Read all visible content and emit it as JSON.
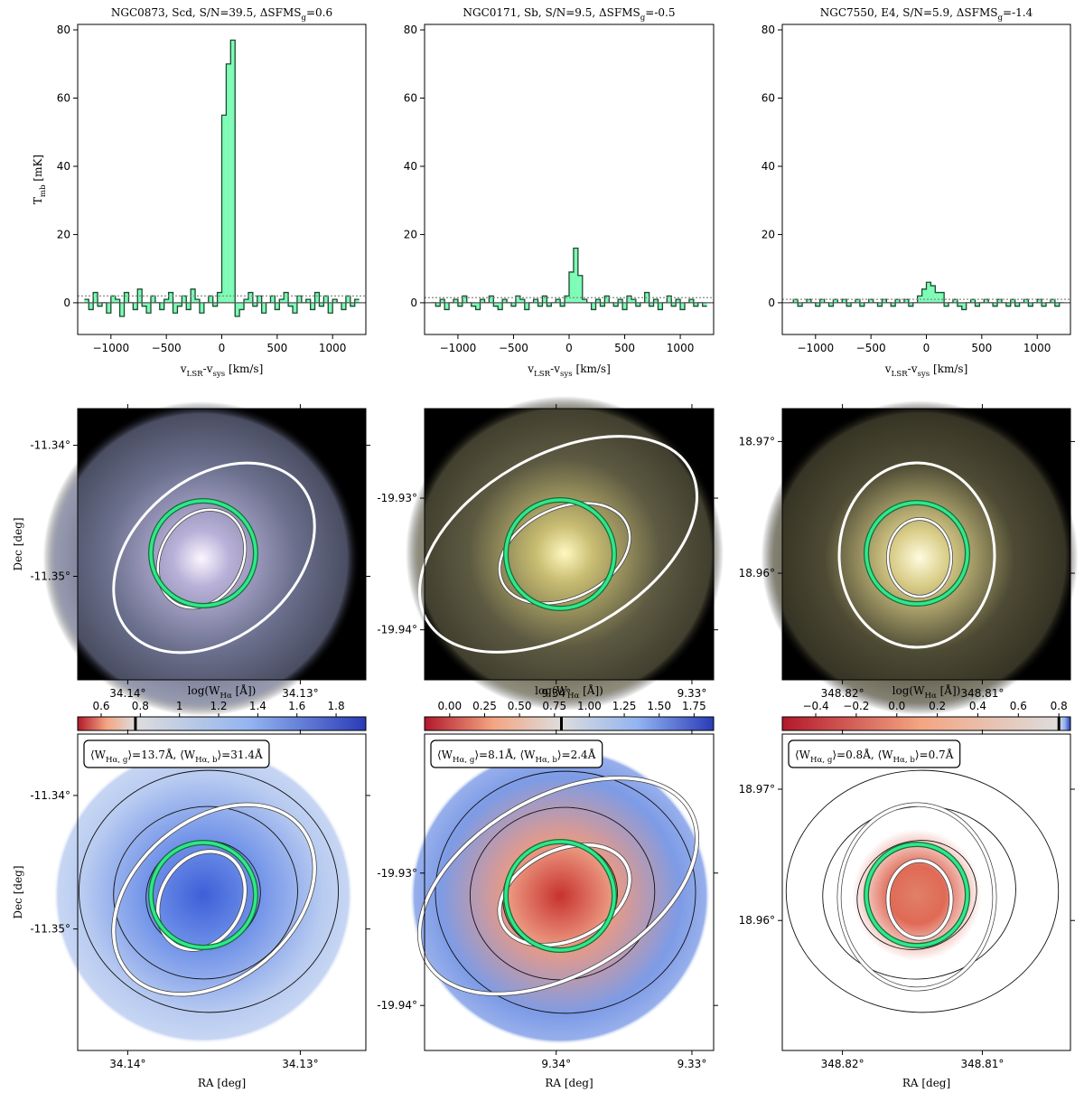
{
  "chart_data": [
    {
      "type": "histogram",
      "title": [
        "NGC0873, Scd, S/N=39.5, ΔSFMS",
        "g",
        "=0.6"
      ],
      "ylabel": [
        "T",
        "mb",
        " [mK]"
      ],
      "xlabel": [
        "v",
        "LSR",
        "-v",
        "sys",
        " [km/s]"
      ],
      "xlim": [
        -1300,
        1300
      ],
      "ylim": [
        -9.3,
        81.6
      ],
      "xticks": [
        {
          "value": -1000,
          "label": "−1000"
        },
        {
          "value": -500,
          "label": "−500"
        },
        0,
        500,
        1000
      ],
      "yticks": [
        0,
        20,
        40,
        60,
        80
      ],
      "baseline": 0,
      "dotted_line": 2,
      "color": "#7dfcb6",
      "edge_color": "#1c4a30",
      "bins": [
        -1240,
        -1200,
        -1160,
        -1120,
        -1080,
        -1040,
        -1000,
        -960,
        -920,
        -880,
        -840,
        -800,
        -760,
        -720,
        -680,
        -640,
        -600,
        -560,
        -520,
        -480,
        -440,
        -400,
        -360,
        -320,
        -280,
        -240,
        -200,
        -160,
        -120,
        -80,
        -40,
        0,
        40,
        80,
        120,
        160,
        200,
        240,
        280,
        320,
        360,
        400,
        440,
        480,
        520,
        560,
        600,
        640,
        680,
        720,
        760,
        800,
        840,
        880,
        920,
        960,
        1000,
        1040,
        1080,
        1120,
        1160,
        1200,
        1240
      ],
      "values": [
        1,
        -2,
        3,
        -1,
        0,
        -3,
        2,
        1,
        -4,
        3,
        0,
        -2,
        4,
        -1,
        -3,
        2,
        0,
        -2,
        1,
        3,
        -3,
        -1,
        2,
        -2,
        4,
        1,
        -3,
        0,
        2,
        -1,
        3,
        55,
        70,
        77,
        -4,
        -2,
        1,
        3,
        -1,
        2,
        -3,
        0,
        2,
        -2,
        1,
        3,
        -1,
        -3,
        2,
        0,
        1,
        -2,
        3,
        -1,
        2,
        -3,
        1,
        0,
        -2,
        2,
        -1,
        1
      ]
    },
    {
      "type": "histogram",
      "title": [
        "NGC0171, Sb, S/N=9.5, ΔSFMS",
        "g",
        "=-0.5"
      ],
      "xlabel": [
        "v",
        "LSR",
        "-v",
        "sys",
        " [km/s]"
      ],
      "xlim": [
        -1300,
        1300
      ],
      "ylim": [
        -9.3,
        81.6
      ],
      "xticks": [
        {
          "value": -1000,
          "label": "−1000"
        },
        {
          "value": -500,
          "label": "−500"
        },
        0,
        500,
        1000
      ],
      "yticks": [
        0,
        20,
        40,
        60,
        80
      ],
      "baseline": 0,
      "dotted_line": 1.5,
      "color": "#7dfcb6",
      "edge_color": "#1c4a30",
      "bins": [
        -1240,
        -1200,
        -1160,
        -1120,
        -1080,
        -1040,
        -1000,
        -960,
        -920,
        -880,
        -840,
        -800,
        -760,
        -720,
        -680,
        -640,
        -600,
        -560,
        -520,
        -480,
        -440,
        -400,
        -360,
        -320,
        -280,
        -240,
        -200,
        -160,
        -120,
        -80,
        -40,
        0,
        40,
        80,
        120,
        160,
        200,
        240,
        280,
        320,
        360,
        400,
        440,
        480,
        520,
        560,
        600,
        640,
        680,
        720,
        760,
        800,
        840,
        880,
        920,
        960,
        1000,
        1040,
        1080,
        1120,
        1160,
        1200,
        1240
      ],
      "values": [
        0,
        -1,
        1,
        -2,
        0,
        1,
        -1,
        2,
        0,
        -1,
        -2,
        1,
        0,
        2,
        -1,
        -2,
        1,
        0,
        -1,
        2,
        1,
        -2,
        0,
        1,
        -1,
        2,
        -1,
        0,
        1,
        -1,
        2,
        9,
        16,
        8,
        1,
        0,
        -2,
        1,
        -1,
        2,
        0,
        -1,
        1,
        -2,
        2,
        1,
        -1,
        0,
        3,
        -1,
        1,
        -2,
        0,
        2,
        -1,
        1,
        -2,
        0,
        1,
        -1,
        0,
        -1
      ]
    },
    {
      "type": "histogram",
      "title": [
        "NGC7550, E4, S/N=5.9, ΔSFMS",
        "g",
        "=-1.4"
      ],
      "xlabel": [
        "v",
        "LSR",
        "-v",
        "sys",
        " [km/s]"
      ],
      "xlim": [
        -1300,
        1300
      ],
      "ylim": [
        -9.3,
        81.6
      ],
      "xticks": [
        {
          "value": -1000,
          "label": "−1000"
        },
        {
          "value": -500,
          "label": "−500"
        },
        0,
        500,
        1000
      ],
      "yticks": [
        0,
        20,
        40,
        60,
        80
      ],
      "baseline": 0,
      "dotted_line": 1,
      "color": "#7dfcb6",
      "edge_color": "#1c4a30",
      "bins": [
        -1240,
        -1200,
        -1160,
        -1120,
        -1080,
        -1040,
        -1000,
        -960,
        -920,
        -880,
        -840,
        -800,
        -760,
        -720,
        -680,
        -640,
        -600,
        -560,
        -520,
        -480,
        -440,
        -400,
        -360,
        -320,
        -280,
        -240,
        -200,
        -160,
        -120,
        -80,
        -40,
        0,
        40,
        80,
        120,
        160,
        200,
        240,
        280,
        320,
        360,
        400,
        440,
        480,
        520,
        560,
        600,
        640,
        680,
        720,
        760,
        800,
        840,
        880,
        920,
        960,
        1000,
        1040,
        1080,
        1120,
        1160,
        1200,
        1240
      ],
      "values": [
        0,
        1,
        -1,
        0,
        1,
        0,
        -1,
        1,
        0,
        -1,
        1,
        0,
        1,
        -1,
        0,
        1,
        -1,
        0,
        1,
        0,
        -1,
        1,
        0,
        -1,
        1,
        0,
        1,
        -1,
        0,
        2,
        4,
        6,
        5,
        3,
        3,
        -1,
        0,
        1,
        -1,
        -2,
        0,
        1,
        -1,
        0,
        1,
        0,
        -1,
        1,
        0,
        -1,
        1,
        -1,
        0,
        1,
        -1,
        0,
        1,
        -1,
        0,
        1,
        -1,
        0
      ]
    }
  ],
  "images": [
    {
      "ylabel": "Dec [deg]",
      "xlim": [
        34.1429,
        34.1262
      ],
      "ylim": [
        -11.3579,
        -11.3372
      ],
      "xticks": [
        {
          "value": 34.14,
          "label": "34.14°"
        },
        {
          "value": 34.13,
          "label": "34.13°"
        }
      ],
      "yticks": [
        {
          "value": -11.34,
          "label": "-11.34°"
        },
        {
          "value": -11.35,
          "label": "-11.35°"
        }
      ]
    },
    {
      "xlim": [
        9.3497,
        9.3284
      ],
      "ylim": [
        -19.9438,
        -19.9232
      ],
      "xticks": [
        {
          "value": 9.34,
          "label": "9.34°"
        },
        {
          "value": 9.33,
          "label": "9.33°"
        }
      ],
      "yticks": [
        {
          "value": -19.93,
          "label": "-19.93°"
        },
        {
          "value": -19.94,
          "label": "-19.94°"
        }
      ]
    },
    {
      "xlim": [
        348.8243,
        348.8037
      ],
      "ylim": [
        18.9519,
        18.9725
      ],
      "xticks": [
        {
          "value": 348.82,
          "label": "348.82°"
        },
        {
          "value": 348.81,
          "label": "348.81°"
        }
      ],
      "yticks": [
        {
          "value": 18.97,
          "label": "18.97°"
        },
        {
          "value": 18.96,
          "label": "18.96°"
        }
      ]
    }
  ],
  "maps": [
    {
      "ylabel": "Dec [deg]",
      "xlabel": "RA [deg]",
      "xlim": [
        34.1429,
        34.1262
      ],
      "ylim": [
        -11.3591,
        -11.3354
      ],
      "xticks": [
        {
          "value": 34.14,
          "label": "34.14°"
        },
        {
          "value": 34.13,
          "label": "34.13°"
        }
      ],
      "yticks": [
        {
          "value": -11.34,
          "label": "-11.34°"
        },
        {
          "value": -11.35,
          "label": "-11.35°"
        }
      ],
      "annotation": [
        "⟨W",
        "Hα, g",
        "⟩=13.7Å, ⟨W",
        "Hα, b",
        "⟩=31.4Å"
      ],
      "colorbar": {
        "label": [
          "log(W",
          "Hα",
          " [Å])"
        ],
        "clim": [
          0.48,
          1.952
        ],
        "ticks": [
          0.6,
          0.8,
          1.0,
          1.2,
          1.4,
          1.6,
          1.8
        ],
        "marker": 0.775
      }
    },
    {
      "xlabel": "RA [deg]",
      "xlim": [
        9.3497,
        9.3284
      ],
      "ylim": [
        -19.9434,
        -19.9195
      ],
      "xticks": [
        {
          "value": 9.34,
          "label": "9.34°"
        },
        {
          "value": 9.33,
          "label": "9.33°"
        }
      ],
      "yticks": [
        {
          "value": -19.93,
          "label": "-19.93°"
        },
        {
          "value": -19.94,
          "label": "-19.94°"
        }
      ],
      "annotation": [
        "⟨W",
        "Hα, g",
        "⟩=8.1Å, ⟨W",
        "Hα, b",
        "⟩=2.4Å"
      ],
      "colorbar": {
        "label": [
          "log(W",
          "Hα",
          " [Å])"
        ],
        "clim": [
          -0.18,
          1.89
        ],
        "ticks": [
          {
            "value": 0,
            "label": "0.00"
          },
          0.25,
          {
            "value": 0.5,
            "label": "0.50"
          },
          0.75,
          {
            "value": 1,
            "label": "1.00"
          },
          1.25,
          {
            "value": 1.5,
            "label": "1.50"
          },
          1.75
        ],
        "marker": 0.8
      }
    },
    {
      "xlabel": "RA [deg]",
      "xlim": [
        348.8243,
        348.8037
      ],
      "ylim": [
        18.9501,
        18.9742
      ],
      "xticks": [
        {
          "value": 348.82,
          "label": "348.82°"
        },
        {
          "value": 348.81,
          "label": "348.81°"
        }
      ],
      "yticks": [
        {
          "value": 18.97,
          "label": "18.97°"
        },
        {
          "value": 18.96,
          "label": "18.96°"
        }
      ],
      "annotation": [
        "⟨W",
        "Hα, g",
        "⟩=0.8Å, ⟨W",
        "Hα, b",
        "⟩=0.7Å"
      ],
      "colorbar": {
        "label": [
          "log(W",
          "Hα",
          " [Å])"
        ],
        "clim": [
          -0.565,
          0.857
        ],
        "ticks": [
          {
            "value": -0.4,
            "label": "−0.4"
          },
          {
            "value": -0.2,
            "label": "−0.2"
          },
          {
            "value": 0,
            "label": "0.0"
          },
          0.2,
          0.4,
          0.6,
          0.8
        ],
        "marker": 0.8
      }
    }
  ]
}
